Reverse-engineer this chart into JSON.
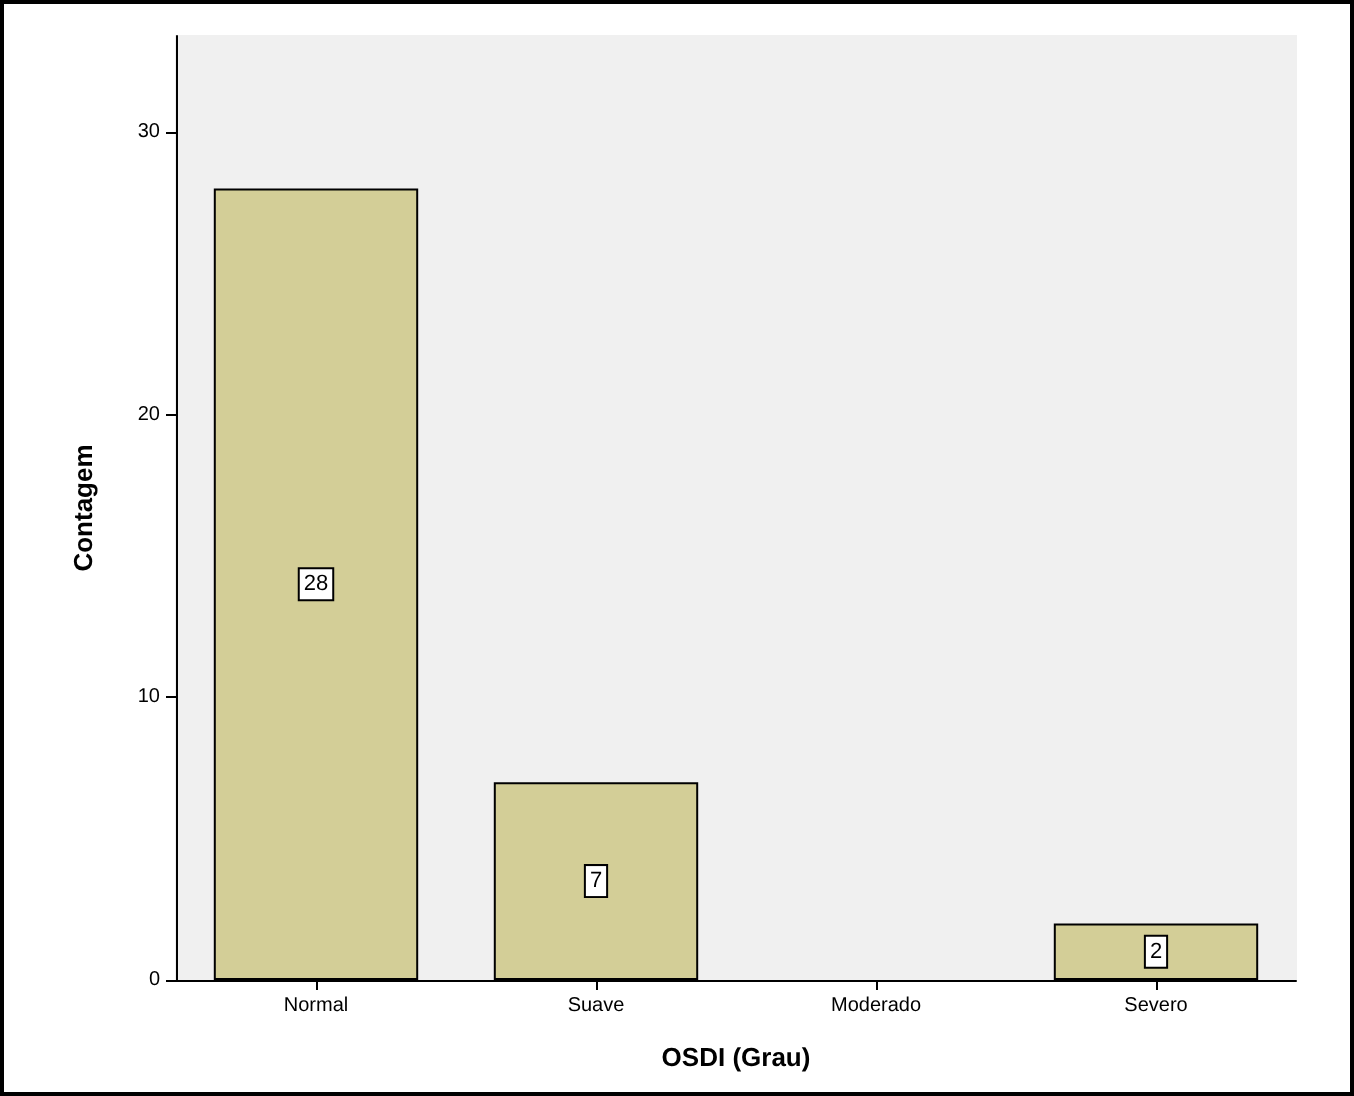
{
  "chart_data": {
    "type": "bar",
    "xlabel": "OSDI (Grau)",
    "ylabel": "Contagem",
    "categories": [
      "Normal",
      "Suave",
      "Moderado",
      "Severo"
    ],
    "values": [
      28,
      7,
      0,
      2
    ],
    "value_labels": [
      "28",
      "7",
      null,
      "2"
    ],
    "color": "#d3ce97",
    "ylim": [
      0,
      33.4
    ],
    "yticks": [
      0,
      10,
      20,
      30
    ],
    "grid": false
  }
}
